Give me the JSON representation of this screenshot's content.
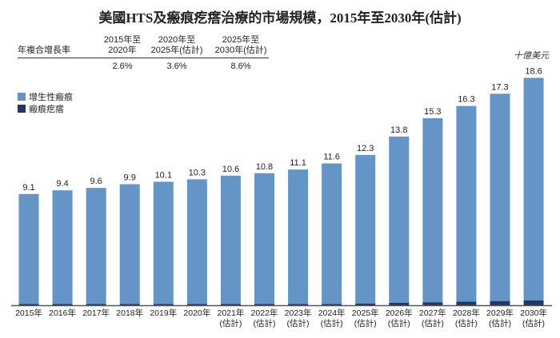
{
  "chart_data": {
    "type": "bar",
    "stacked": true,
    "title": "美國HTS及瘢痕疙瘩治療的市場規模，2015年至2030年(估計)",
    "unit": "十億美元",
    "categories": [
      [
        "2015年",
        ""
      ],
      [
        "2016年",
        ""
      ],
      [
        "2017年",
        ""
      ],
      [
        "2018年",
        ""
      ],
      [
        "2019年",
        ""
      ],
      [
        "2020年",
        ""
      ],
      [
        "2021年",
        "(估計)"
      ],
      [
        "2022年",
        "(估計)"
      ],
      [
        "2023年",
        "(估計)"
      ],
      [
        "2024年",
        "(估計)"
      ],
      [
        "2025年",
        "(估計)"
      ],
      [
        "2026年",
        "(估計)"
      ],
      [
        "2027年",
        "(估計)"
      ],
      [
        "2028年",
        "(估計)"
      ],
      [
        "2029年",
        "(估計)"
      ],
      [
        "2030年",
        "(估計)"
      ]
    ],
    "totals": [
      9.1,
      9.4,
      9.6,
      9.9,
      10.1,
      10.3,
      10.6,
      10.8,
      11.1,
      11.6,
      12.3,
      13.8,
      15.3,
      16.3,
      17.3,
      18.6
    ],
    "series": [
      {
        "name": "增生性瘢痕",
        "color": "#6495c6",
        "values": [
          9.0,
          9.3,
          9.5,
          9.8,
          10.0,
          10.2,
          10.5,
          10.7,
          11.0,
          11.5,
          12.15,
          13.6,
          15.05,
          16.0,
          16.95,
          18.2
        ]
      },
      {
        "name": "瘢痕疙瘩",
        "color": "#1f3864",
        "values": [
          0.1,
          0.1,
          0.1,
          0.1,
          0.1,
          0.1,
          0.1,
          0.1,
          0.1,
          0.1,
          0.15,
          0.2,
          0.25,
          0.3,
          0.35,
          0.4
        ]
      }
    ],
    "grid": false,
    "legend": "top-left",
    "cagr_table": {
      "row_label": "年複合增長率",
      "periods": [
        [
          "2015年至",
          "2020年"
        ],
        [
          "2020年至",
          "2025年(估計)"
        ],
        [
          "2025年至",
          "2030年(估計)"
        ]
      ],
      "values": [
        "2.6%",
        "3.6%",
        "8.6%"
      ]
    }
  }
}
